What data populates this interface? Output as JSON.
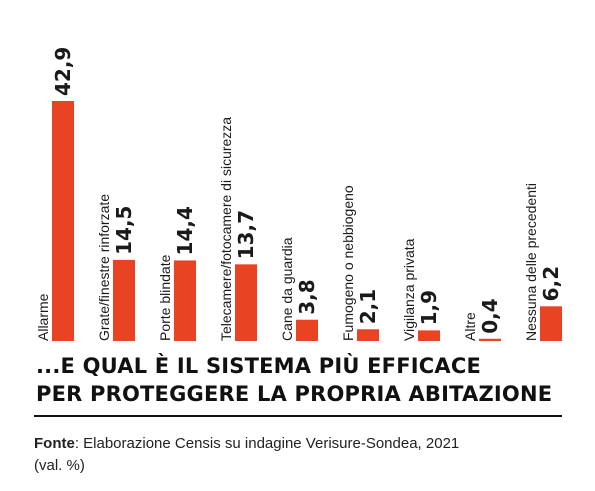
{
  "chart_data": {
    "type": "bar",
    "categories": [
      "Allarme",
      "Grate/finestre rinforzate",
      "Porte blindate",
      "Telecamere/fotocamere di sicurezza",
      "Cane da guardia",
      "Fumogeno o nebbiogeno",
      "Vigilanza privata",
      "Altre",
      "Nessuna delle precedenti"
    ],
    "values": [
      42.9,
      14.5,
      14.4,
      13.7,
      3.8,
      2.1,
      1.9,
      0.4,
      6.2
    ],
    "value_labels": [
      "42,9",
      "14,5",
      "14,4",
      "13,7",
      "3,8",
      "2,1",
      "1,9",
      "0,4",
      "6,2"
    ],
    "ylim": [
      0,
      42.9
    ],
    "grid": false,
    "legend": "none",
    "colors": {
      "bar": "#e84424",
      "text": "#1a1a1a"
    }
  },
  "headline": {
    "line1": "...E QUAL È IL SISTEMA PIÙ EFFICACE",
    "line2": "PER PROTEGGERE LA PROPRIA ABITAZIONE"
  },
  "source": {
    "label": "Fonte",
    "text": ": Elaborazione Censis su indagine Verisure-Sondea, 2021",
    "unit": "(val. %)"
  }
}
